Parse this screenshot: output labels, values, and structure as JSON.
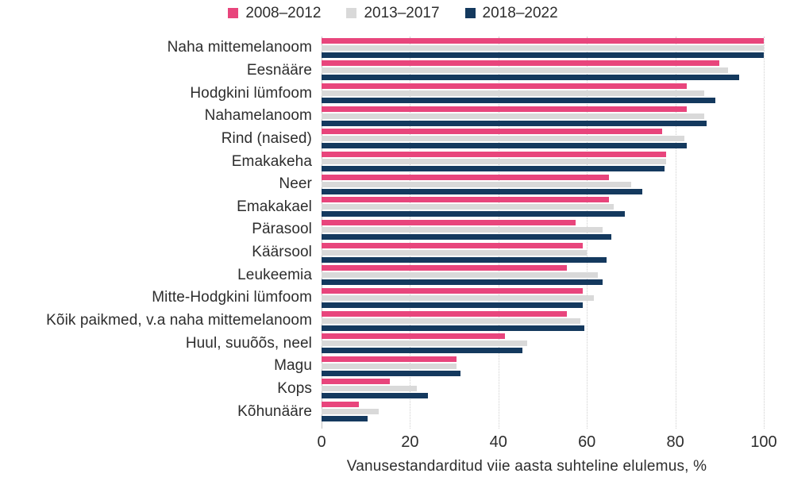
{
  "chart_data": {
    "type": "bar",
    "orientation": "horizontal",
    "title": "",
    "xlabel": "Vanusestandarditud viie aasta suhteline elulemus, %",
    "ylabel": "",
    "xlim": [
      0,
      100
    ],
    "xticks": [
      0,
      20,
      40,
      60,
      80,
      100
    ],
    "grid": "vertical-dotted",
    "legend_position": "top",
    "categories": [
      "Naha mittemelanoom",
      "Eesnääre",
      "Hodgkini lümfoom",
      "Nahamelanoom",
      "Rind (naised)",
      "Emakakeha",
      "Neer",
      "Emakakael",
      "Pärasool",
      "Käärsool",
      "Leukeemia",
      "Mitte-Hodgkini lümfoom",
      "Kõik paikmed, v.a naha mittemelanoom",
      "Huul, suuõõs, neel",
      "Magu",
      "Kops",
      "Kõhunääre"
    ],
    "series": [
      {
        "name": "2008–2012",
        "color": "#e8457c",
        "values": [
          100,
          90,
          82.5,
          82.5,
          77,
          78,
          65,
          65,
          57.5,
          59,
          55.5,
          59,
          55.5,
          41.5,
          30.5,
          15.5,
          8.5
        ]
      },
      {
        "name": "2013–2017",
        "color": "#d9d9d9",
        "values": [
          100,
          92,
          86.5,
          86.5,
          82,
          78,
          70,
          66,
          63.5,
          60,
          62.5,
          61.5,
          58.5,
          46.5,
          30.5,
          21.5,
          13
        ]
      },
      {
        "name": "2018–2022",
        "color": "#14395e",
        "values": [
          100,
          94.5,
          89,
          87,
          82.5,
          77.5,
          72.5,
          68.5,
          65.5,
          64.5,
          63.5,
          59,
          59.5,
          45.5,
          31.5,
          24,
          10.5
        ]
      }
    ],
    "colors": {
      "text": "#2d2d2d",
      "gridline": "#cfcfcf",
      "axis_spine": "#c2c2c2",
      "background": "#ffffff"
    }
  }
}
